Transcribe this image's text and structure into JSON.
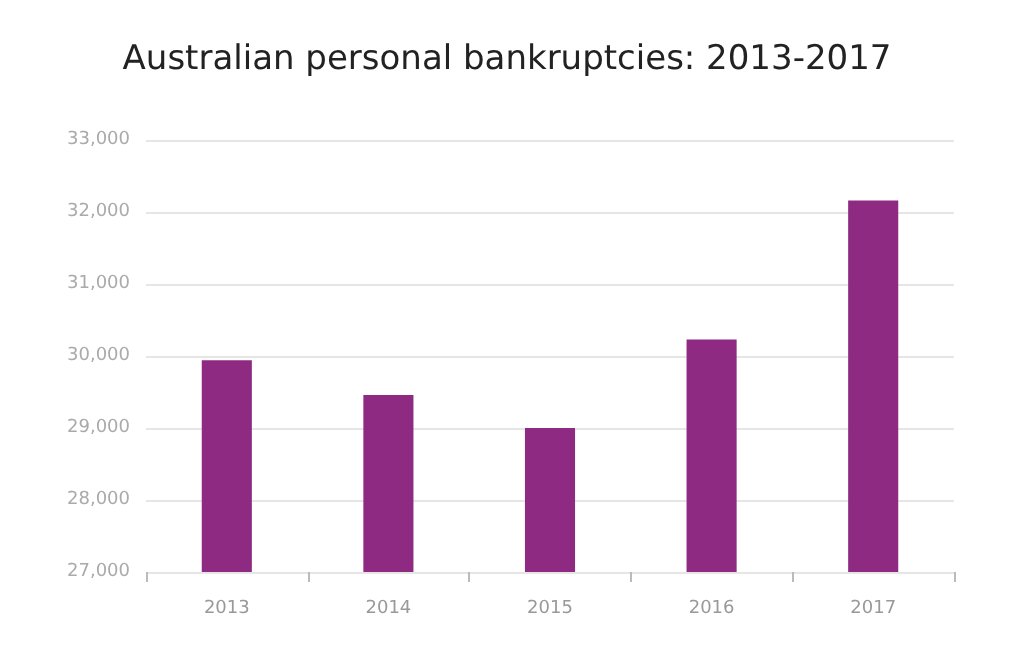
{
  "chart_data": {
    "type": "bar",
    "title": "Australian personal bankruptcies: 2013-2017",
    "categories": [
      "2013",
      "2014",
      "2015",
      "2016",
      "2017"
    ],
    "values": [
      29940,
      29460,
      29000,
      30230,
      32160
    ],
    "color": "#8e2a82",
    "ylim": [
      27000,
      33000
    ],
    "yticks": [
      {
        "value": 27000,
        "label": "27,000"
      },
      {
        "value": 28000,
        "label": "28,000"
      },
      {
        "value": 29000,
        "label": "29,000"
      },
      {
        "value": 30000,
        "label": "30,000"
      },
      {
        "value": 31000,
        "label": "31,000"
      },
      {
        "value": 32000,
        "label": "32,000"
      },
      {
        "value": 33000,
        "label": "33,000"
      }
    ],
    "grid": "y"
  }
}
